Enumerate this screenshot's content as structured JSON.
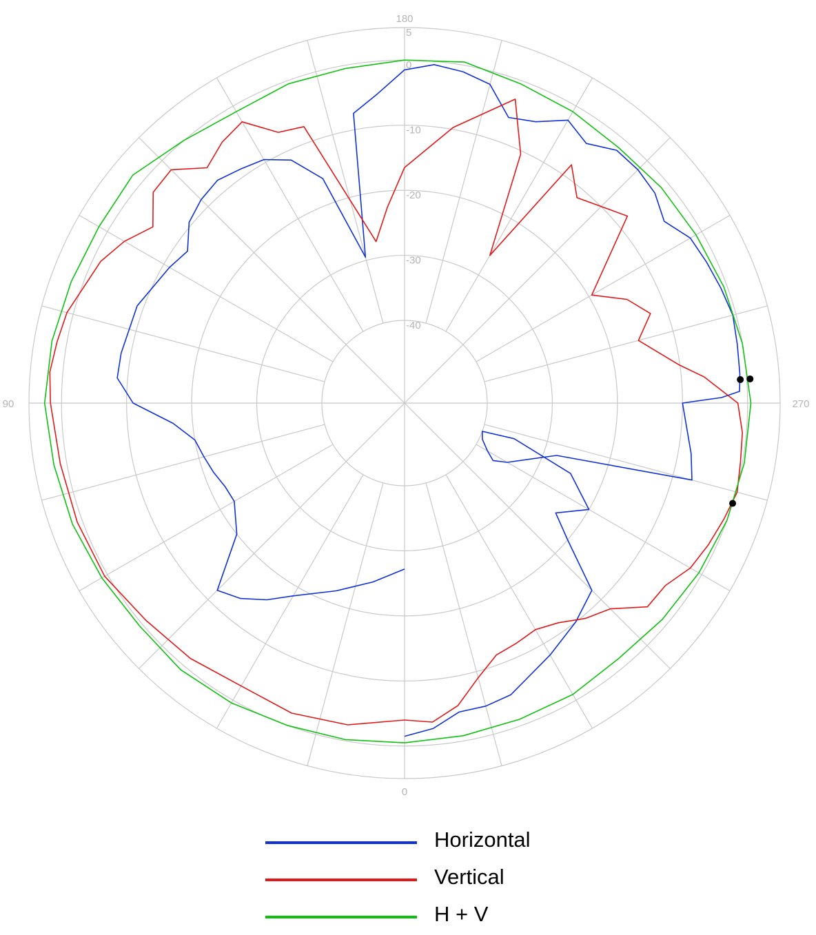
{
  "chart_data": {
    "type": "polar-line",
    "title": "",
    "angle_labels": [
      {
        "label": "180",
        "deg": 180
      },
      {
        "label": "270",
        "deg": 270
      },
      {
        "label": "0",
        "deg": 0
      },
      {
        "label": "90",
        "deg": 90
      }
    ],
    "radial_axis": {
      "outer": 5,
      "inner": -40,
      "tick_labels": [
        "5",
        "0",
        "-10",
        "-20",
        "-30",
        "-40"
      ],
      "rings": [
        0,
        -10,
        -20,
        -30
      ]
    },
    "angular_grid_step_deg": 15,
    "series": [
      {
        "name": "Horizontal",
        "color": "#1030d8",
        "points": [
          [
            0,
            -27.2
          ],
          [
            10,
            -24.8
          ],
          [
            20,
            -22
          ],
          [
            30,
            -18.5
          ],
          [
            35,
            -15.8
          ],
          [
            40,
            -13.5
          ],
          [
            45,
            -12
          ],
          [
            52,
            -20
          ],
          [
            60,
            -22.5
          ],
          [
            65,
            -22.3
          ],
          [
            70,
            -21.5
          ],
          [
            75,
            -20.8
          ],
          [
            80,
            -20
          ],
          [
            85,
            -17
          ],
          [
            90,
            -11
          ],
          [
            95,
            -8.4
          ],
          [
            100,
            -8.5
          ],
          [
            110,
            -9
          ],
          [
            120,
            -11
          ],
          [
            125,
            -12
          ],
          [
            130,
            -9.5
          ],
          [
            135,
            -8.5
          ],
          [
            140,
            -8
          ],
          [
            145,
            -8.8
          ],
          [
            150,
            -9.5
          ],
          [
            155,
            -11.5
          ],
          [
            160,
            -16
          ],
          [
            165,
            -29.5
          ],
          [
            170,
            -7.5
          ],
          [
            175,
            -5
          ],
          [
            180,
            -1.5
          ],
          [
            185,
            -0.5
          ],
          [
            190,
            -1
          ],
          [
            195,
            -2
          ],
          [
            200,
            -6
          ],
          [
            205,
            -5
          ],
          [
            210,
            -2.5
          ],
          [
            215,
            -4
          ],
          [
            220,
            -2
          ],
          [
            225,
            -2
          ],
          [
            230,
            -2.5
          ],
          [
            235,
            -4
          ],
          [
            240,
            -2
          ],
          [
            245,
            -1.5
          ],
          [
            250,
            -1
          ],
          [
            255,
            -0.5
          ],
          [
            260,
            -0.8
          ],
          [
            265,
            -1
          ],
          [
            268,
            -1.2
          ],
          [
            269,
            -4
          ],
          [
            270,
            -10
          ],
          [
            280,
            -8
          ],
          [
            285,
            -7
          ],
          [
            289,
            -28
          ],
          [
            300,
            -34.5
          ],
          [
            303,
            -36.5
          ],
          [
            300,
            -38
          ],
          [
            295,
            -39.5
          ],
          [
            290,
            -40
          ],
          [
            288,
            -35
          ],
          [
            293,
            -25
          ],
          [
            300,
            -20
          ],
          [
            306,
            -24
          ],
          [
            310,
            -20
          ],
          [
            315,
            -12
          ],
          [
            322,
            -10
          ],
          [
            330,
            -8
          ],
          [
            340,
            -5
          ],
          [
            345,
            -4.5
          ],
          [
            350,
            -4.5
          ],
          [
            355,
            -2.5
          ],
          [
            360,
            -1.5
          ]
        ]
      },
      {
        "name": "Vertical",
        "color": "#e01818",
        "points": [
          [
            0,
            -4
          ],
          [
            10,
            -2.5
          ],
          [
            20,
            -2
          ],
          [
            30,
            -2.5
          ],
          [
            40,
            -1.5
          ],
          [
            50,
            -0.8
          ],
          [
            60,
            0.5
          ],
          [
            70,
            0.8
          ],
          [
            80,
            1
          ],
          [
            90,
            1.7
          ],
          [
            95,
            2
          ],
          [
            100,
            1.5
          ],
          [
            105,
            1
          ],
          [
            115,
            -1.2
          ],
          [
            120,
            -3
          ],
          [
            125,
            -5.5
          ],
          [
            130,
            -2.3
          ],
          [
            135,
            -2
          ],
          [
            140,
            -5.5
          ],
          [
            145,
            -3.8
          ],
          [
            150,
            -2.8
          ],
          [
            155,
            -6.8
          ],
          [
            160,
            -7.5
          ],
          [
            170,
            -27.5
          ],
          [
            175,
            -22.5
          ],
          [
            180,
            -16.5
          ],
          [
            190,
            -9.7
          ],
          [
            200,
            -3
          ],
          [
            205,
            -10.5
          ],
          [
            210,
            -26.5
          ],
          [
            215,
            -8
          ],
          [
            220,
            -11.5
          ],
          [
            230,
            -8
          ],
          [
            240,
            -19.5
          ],
          [
            245,
            -15
          ],
          [
            250,
            -12.5
          ],
          [
            255,
            -15.5
          ],
          [
            262,
            -10.2
          ],
          [
            265,
            -6.5
          ],
          [
            270,
            -1.5
          ],
          [
            275,
            -0.6
          ],
          [
            280,
            -0.3
          ],
          [
            285,
            0.2
          ],
          [
            290,
            -0.5
          ],
          [
            295,
            -1.2
          ],
          [
            300,
            -2
          ],
          [
            305,
            -3.8
          ],
          [
            310,
            -4
          ],
          [
            315,
            -8
          ],
          [
            320,
            -9.5
          ],
          [
            325,
            -11.5
          ],
          [
            330,
            -12.5
          ],
          [
            335,
            -12
          ],
          [
            340,
            -11.5
          ],
          [
            345,
            -9
          ],
          [
            350,
            -5.5
          ],
          [
            355,
            -3.5
          ],
          [
            360,
            -4
          ]
        ]
      },
      {
        "name": "H + V",
        "color": "#10c010",
        "points": [
          [
            0,
            -0.5
          ],
          [
            10,
            -0.2
          ],
          [
            20,
            0
          ],
          [
            30,
            0.5
          ],
          [
            40,
            0.8
          ],
          [
            50,
            0.5
          ],
          [
            60,
            1
          ],
          [
            70,
            1.6
          ],
          [
            80,
            2
          ],
          [
            90,
            2.6
          ],
          [
            100,
            2.3
          ],
          [
            110,
            1.8
          ],
          [
            120,
            1.5
          ],
          [
            130,
            1.8
          ],
          [
            140,
            0
          ],
          [
            150,
            -1
          ],
          [
            160,
            -0.5
          ],
          [
            170,
            -0.5
          ],
          [
            180,
            0
          ],
          [
            190,
            0.5
          ],
          [
            200,
            -0.5
          ],
          [
            210,
            -1
          ],
          [
            220,
            -1.5
          ],
          [
            230,
            -1.2
          ],
          [
            240,
            -1
          ],
          [
            250,
            -0.5
          ],
          [
            260,
            0
          ],
          [
            270,
            0.5
          ],
          [
            280,
            0.3
          ],
          [
            290,
            0
          ],
          [
            300,
            -0.5
          ],
          [
            310,
            -1
          ],
          [
            320,
            -1.5
          ],
          [
            330,
            -1
          ],
          [
            340,
            -1
          ],
          [
            350,
            -0.8
          ],
          [
            360,
            -0.5
          ]
        ]
      }
    ],
    "markers": [
      {
        "series": "Horizontal",
        "deg": 266,
        "value": -1
      },
      {
        "series": "H + V",
        "deg": 266,
        "value": 0.5
      },
      {
        "series": "Vertical",
        "deg": 287,
        "value": 0
      }
    ],
    "legend": {
      "position": "bottom",
      "entries": [
        "Horizontal",
        "Vertical",
        "H + V"
      ]
    },
    "grid": true
  }
}
